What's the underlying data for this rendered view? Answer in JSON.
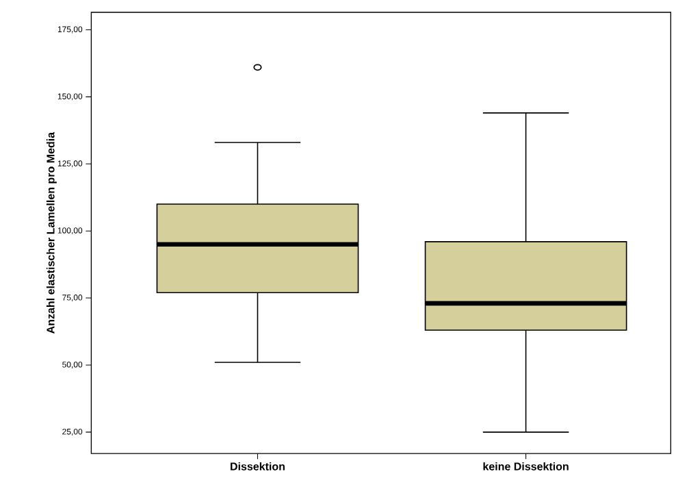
{
  "chart_data": {
    "type": "box",
    "ylabel": "Anzahl elastischer Lamellen pro Media",
    "categories": [
      "Dissektion",
      "keine Dissektion"
    ],
    "color": "#d4cf9b",
    "boxes": [
      {
        "low": 51,
        "q1": 77,
        "median": 95,
        "q3": 110,
        "high": 133,
        "outliers": [
          161
        ]
      },
      {
        "low": 25,
        "q1": 63,
        "median": 73,
        "q3": 96,
        "high": 144
      }
    ],
    "ylim": [
      17,
      181.5
    ],
    "yticks": [
      {
        "value": 25,
        "label": "25,00"
      },
      {
        "value": 50,
        "label": "50,00"
      },
      {
        "value": 75,
        "label": "75,00"
      },
      {
        "value": 100,
        "label": "100,00"
      },
      {
        "value": 125,
        "label": "125,00"
      },
      {
        "value": 150,
        "label": "150,00"
      },
      {
        "value": 175,
        "label": "175,00"
      }
    ],
    "grid": false
  }
}
